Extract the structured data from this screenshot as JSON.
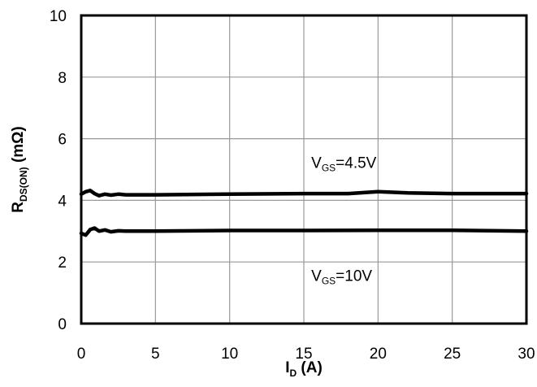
{
  "chart_data": {
    "type": "line",
    "xlabel": {
      "main": "I",
      "sub": "D",
      "rest": " (A)"
    },
    "ylabel": {
      "main": "R",
      "sub": "DS(ON)",
      "rest": " (mΩ)"
    },
    "xlim": [
      0,
      30
    ],
    "ylim": [
      0,
      10
    ],
    "x_ticks": [
      "0",
      "5",
      "10",
      "15",
      "20",
      "25",
      "30"
    ],
    "y_ticks": [
      "0",
      "2",
      "4",
      "6",
      "8",
      "10"
    ],
    "grid": true,
    "series": [
      {
        "name": "VGS=4.5V",
        "label": {
          "main": "V",
          "sub": "GS",
          "rest": "=4.5V"
        },
        "color": "#000000",
        "points": [
          [
            0,
            4.2
          ],
          [
            0.3,
            4.28
          ],
          [
            0.6,
            4.32
          ],
          [
            0.9,
            4.22
          ],
          [
            1.2,
            4.15
          ],
          [
            1.6,
            4.2
          ],
          [
            2.0,
            4.17
          ],
          [
            2.5,
            4.2
          ],
          [
            3,
            4.18
          ],
          [
            5,
            4.18
          ],
          [
            10,
            4.2
          ],
          [
            15,
            4.22
          ],
          [
            18,
            4.22
          ],
          [
            20,
            4.28
          ],
          [
            22,
            4.24
          ],
          [
            25,
            4.22
          ],
          [
            30,
            4.22
          ]
        ]
      },
      {
        "name": "VGS=10V",
        "label": {
          "main": "V",
          "sub": "GS",
          "rest": "=10V"
        },
        "color": "#000000",
        "points": [
          [
            0,
            2.93
          ],
          [
            0.3,
            2.87
          ],
          [
            0.6,
            3.05
          ],
          [
            0.9,
            3.1
          ],
          [
            1.2,
            3.0
          ],
          [
            1.6,
            3.04
          ],
          [
            2.0,
            2.98
          ],
          [
            2.5,
            3.01
          ],
          [
            3,
            3.0
          ],
          [
            5,
            3.0
          ],
          [
            10,
            3.02
          ],
          [
            15,
            3.02
          ],
          [
            20,
            3.03
          ],
          [
            25,
            3.03
          ],
          [
            30,
            3.0
          ]
        ]
      }
    ]
  }
}
